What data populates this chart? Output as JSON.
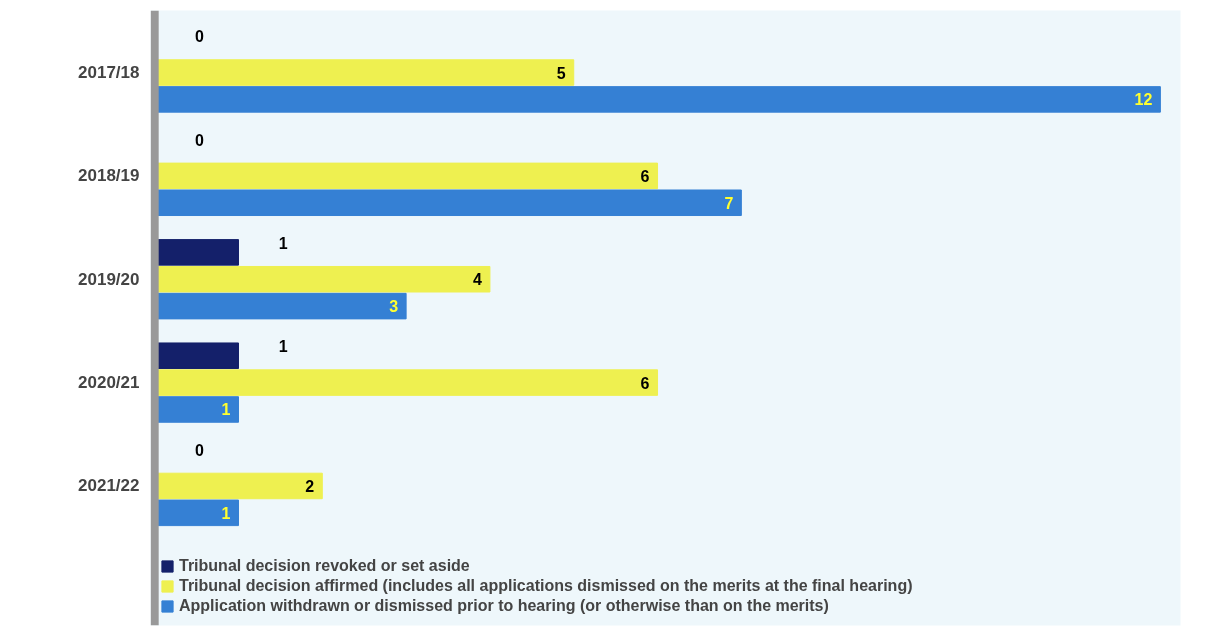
{
  "chart_data": {
    "type": "bar",
    "orientation": "horizontal",
    "categories": [
      "2017/18",
      "2018/19",
      "2019/20",
      "2020/21",
      "2021/22"
    ],
    "series": [
      {
        "name": "Tribunal decision revoked or set aside",
        "color": "#14206a",
        "values": [
          0,
          0,
          1,
          1,
          0
        ]
      },
      {
        "name": "Tribunal decision affirmed (includes all applications dismissed on the merits at the final hearing)",
        "color": "#eef050",
        "values": [
          5,
          6,
          4,
          6,
          2
        ]
      },
      {
        "name": "Application withdrawn or dismissed prior to hearing (or otherwise than on the merits)",
        "color": "#3580d4",
        "values": [
          12,
          7,
          3,
          1,
          1
        ]
      }
    ],
    "data_labels": true,
    "legend": "bottom",
    "grid": false
  }
}
